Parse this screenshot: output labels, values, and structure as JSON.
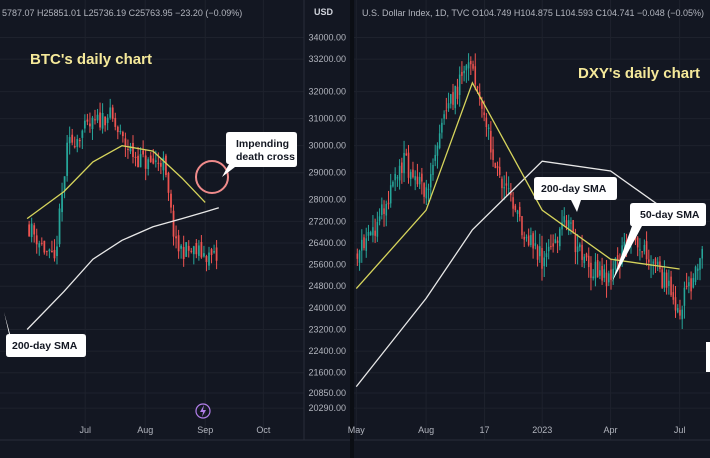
{
  "left_panel": {
    "ohlc_text": "5787.07  H25851.01  L25736.19  C25763.95  −23.20 (−0.09%)",
    "title": "BTC's daily chart",
    "unit": "USD",
    "callout_death_cross": [
      "Impending",
      "death cross"
    ],
    "callout_sma200": "200-day SMA",
    "colors": {
      "bull": "#26a69a",
      "bear": "#ef5350",
      "sma50": "#d6d45c",
      "sma200": "#e8e8e8",
      "circle": "#f08b8b"
    }
  },
  "right_panel": {
    "header_text": "U.S. Dollar Index, 1D, TVC   O104.749  H104.875  L104.593  C104.741  −0.048 (−0.05%)",
    "title": "DXY's daily chart",
    "callout_sma200": "200-day SMA",
    "callout_sma50": "50-day SMA"
  },
  "chart_data": [
    {
      "type": "line",
      "title": "BTC's daily chart",
      "x_ticks": [
        "Jul",
        "Aug",
        "Sep",
        "Oct"
      ],
      "y_ticks": [
        34000.0,
        33200.0,
        32000.0,
        31000.0,
        30000.0,
        29000.0,
        28000.0,
        27200.0,
        26400.0,
        25600.0,
        24800.0,
        24000.0,
        23200.0,
        22400.0,
        21600.0,
        20850.0,
        20290.0
      ],
      "y_tick_labels": [
        "34000.00",
        "33200.00",
        "32000.00",
        "31000.00",
        "30000.00",
        "29000.00",
        "28000.00",
        "27200.00",
        "26400.00",
        "25600.00",
        "24800.00",
        "24000.00",
        "23200.00",
        "22400.00",
        "21600.00",
        "20850.00",
        "20290.00"
      ],
      "ylim": [
        20000,
        34500
      ],
      "series": [
        {
          "name": "200-day SMA",
          "x": [
            "2023-06-01",
            "2023-06-20",
            "2023-07-05",
            "2023-07-20",
            "2023-08-05",
            "2023-08-20",
            "2023-09-01",
            "2023-09-08"
          ],
          "y": [
            23200,
            24600,
            25800,
            26500,
            27000,
            27300,
            27550,
            27700
          ]
        },
        {
          "name": "50-day SMA",
          "x": [
            "2023-06-01",
            "2023-06-20",
            "2023-07-05",
            "2023-07-20",
            "2023-08-05",
            "2023-08-20",
            "2023-09-01"
          ],
          "y": [
            27300,
            28300,
            29400,
            30000,
            29800,
            28800,
            27900
          ]
        }
      ],
      "candles_close": {
        "x": [
          "2023-06-01",
          "2023-06-08",
          "2023-06-15",
          "2023-06-22",
          "2023-06-29",
          "2023-07-06",
          "2023-07-13",
          "2023-07-20",
          "2023-07-27",
          "2023-08-03",
          "2023-08-10",
          "2023-08-17",
          "2023-08-24",
          "2023-08-31",
          "2023-09-07"
        ],
        "y": [
          27100,
          26400,
          25600,
          30000,
          30500,
          30800,
          31200,
          30200,
          29600,
          29300,
          29500,
          26200,
          26100,
          26000,
          25800
        ]
      }
    },
    {
      "type": "line",
      "title": "DXY's daily chart",
      "x_ticks": [
        "May",
        "Aug",
        "17",
        "2023",
        "Apr",
        "Jul"
      ],
      "series": [
        {
          "name": "200-day SMA",
          "x": [
            "2022-05-01",
            "2022-08-01",
            "2022-10-01",
            "2023-01-01",
            "2023-04-01",
            "2023-07-01"
          ],
          "y": [
            96.0,
            100.5,
            104.0,
            107.5,
            107.0,
            104.5
          ]
        },
        {
          "name": "50-day SMA",
          "x": [
            "2022-05-01",
            "2022-08-01",
            "2022-10-01",
            "2023-01-01",
            "2023-04-01",
            "2023-07-01"
          ],
          "y": [
            101.0,
            105.0,
            111.5,
            105.0,
            102.5,
            102.0
          ]
        }
      ],
      "candles_close": {
        "x": [
          "2022-05-01",
          "2022-06-01",
          "2022-07-01",
          "2022-08-01",
          "2022-09-01",
          "2022-10-01",
          "2022-11-01",
          "2022-12-01",
          "2023-01-01",
          "2023-02-01",
          "2023-03-01",
          "2023-04-01",
          "2023-05-01",
          "2023-06-01",
          "2023-07-01",
          "2023-08-01"
        ],
        "y": [
          103.0,
          104.5,
          107.5,
          106.0,
          110.5,
          112.5,
          107.0,
          104.5,
          102.5,
          104.5,
          102.0,
          101.5,
          104.0,
          102.0,
          100.0,
          102.8
        ]
      }
    }
  ]
}
